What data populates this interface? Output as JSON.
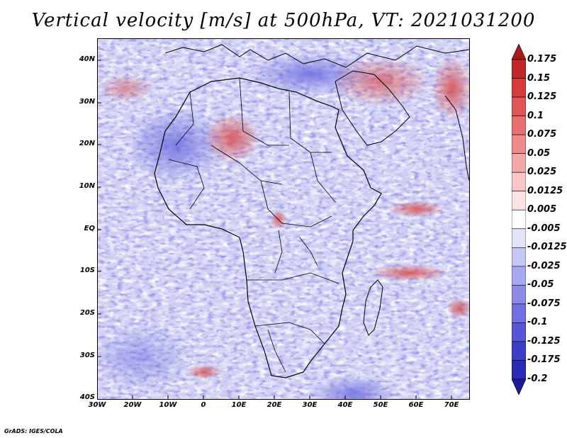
{
  "title": "Vertical velocity [m/s] at 500hPa, VT: 2021031200",
  "credit": "GrADS: IGES/COLA",
  "map": {
    "region": "Africa",
    "variable": "Vertical velocity",
    "units": "m/s",
    "level": "500hPa",
    "valid_time": "2021031200",
    "lat_labels": [
      "40N",
      "30N",
      "20N",
      "10N",
      "EQ",
      "10S",
      "20S",
      "30S",
      "40S"
    ],
    "lon_labels": [
      "30W",
      "20W",
      "10W",
      "0",
      "10E",
      "20E",
      "30E",
      "40E",
      "50E",
      "60E",
      "70E"
    ]
  },
  "colorbar": {
    "labels": [
      "0.175",
      "0.15",
      "0.125",
      "0.1",
      "0.075",
      "0.05",
      "0.025",
      "0.0125",
      "0.005",
      "-0.005",
      "-0.0125",
      "-0.025",
      "-0.05",
      "-0.075",
      "-0.1",
      "-0.125",
      "-0.175",
      "-0.2"
    ],
    "colors": [
      "#a61a1a",
      "#c0292a",
      "#d53d3d",
      "#e05555",
      "#e77070",
      "#ee8c8c",
      "#f3a8a8",
      "#f8c6c6",
      "#fce3e3",
      "#ffffff",
      "#e3e3fb",
      "#c6c6f5",
      "#a8a8ef",
      "#8c8ce8",
      "#7070e0",
      "#5555d6",
      "#3d3dc8",
      "#2a2ab5",
      "#1a1a9a"
    ]
  }
}
